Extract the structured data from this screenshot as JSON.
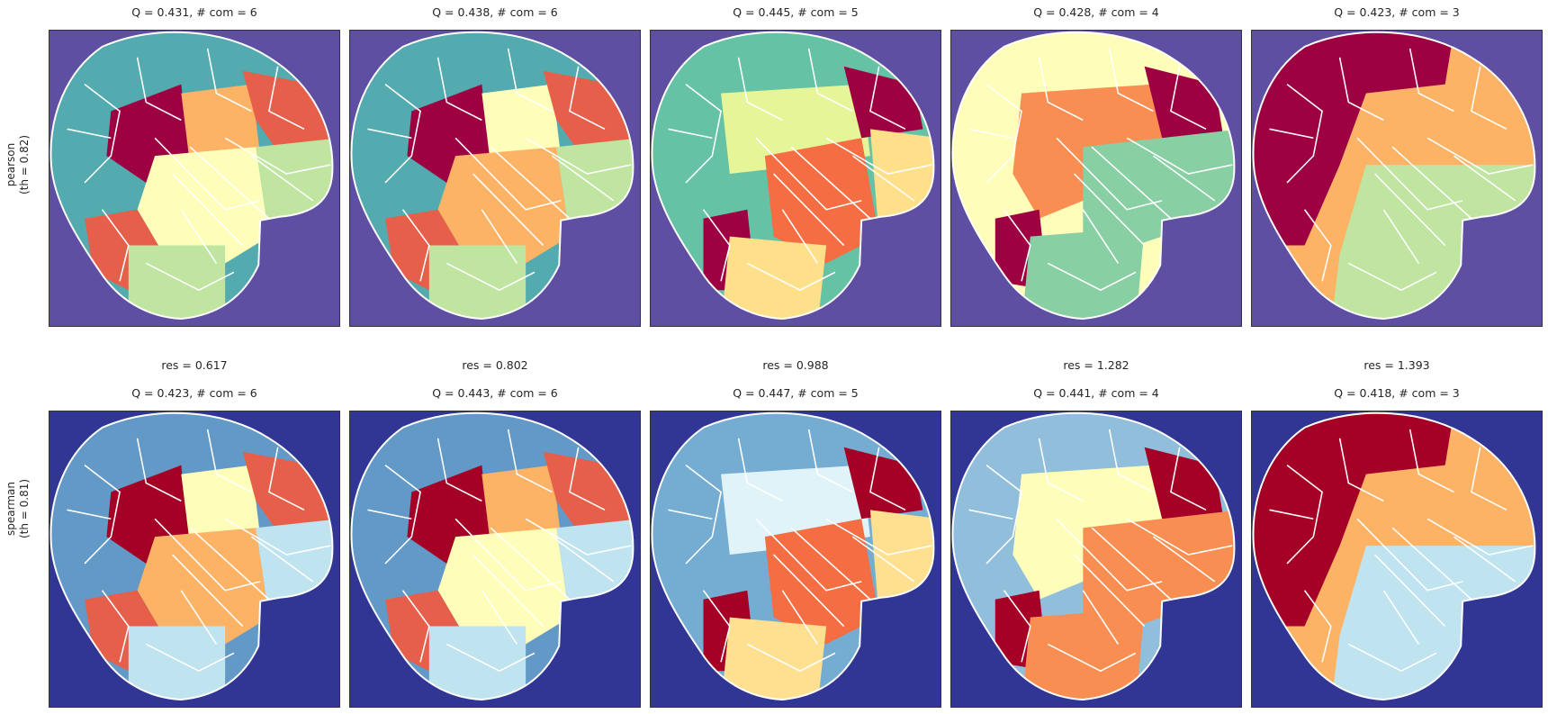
{
  "rows": [
    {
      "label_line1": "pearson",
      "label_line2": "(th = 0.82)",
      "background": "#5e4fa2",
      "panels": [
        {
          "title": "Q = 0.431,  # com = 6",
          "colors": [
            "#53aaaf",
            "#9e0142",
            "#fdb366",
            "#e65f4b",
            "#fefeba",
            "#bfe5a0"
          ]
        },
        {
          "title": "Q = 0.438,  # com = 6",
          "colors": [
            "#53aaaf",
            "#9e0142",
            "#fefeba",
            "#e65f4b",
            "#fdb366",
            "#bfe5a0"
          ]
        },
        {
          "title": "Q = 0.445,  # com = 5",
          "colors": [
            "#66c2a5",
            "#9e0142",
            "#e6f598",
            "#f46d43",
            "#fee08b"
          ]
        },
        {
          "title": "Q = 0.428,  # com = 4",
          "colors": [
            "#fefeba",
            "#9e0142",
            "#f88e52",
            "#88cfa4"
          ]
        },
        {
          "title": "Q = 0.423,  # com = 3",
          "colors": [
            "#9e0142",
            "#fdb366",
            "#bfe5a0"
          ]
        }
      ]
    },
    {
      "label_line1": "spearman",
      "label_line2": "(th = 0.81)",
      "background": "#313695",
      "panels": [
        {
          "title": "Q = 0.423,  # com = 6",
          "res": "res = 0.617",
          "colors": [
            "#6399c6",
            "#a50026",
            "#fefeba",
            "#e65f4b",
            "#fdb366",
            "#bfe3ef"
          ]
        },
        {
          "title": "Q = 0.443,  # com = 6",
          "res": "res = 0.802",
          "colors": [
            "#6399c6",
            "#a50026",
            "#fdb366",
            "#e65f4b",
            "#fefeba",
            "#bfe3ef"
          ]
        },
        {
          "title": "Q = 0.447,  # com = 5",
          "res": "res = 0.988",
          "colors": [
            "#74add1",
            "#a50026",
            "#e0f3f8",
            "#f46d43",
            "#fee090"
          ]
        },
        {
          "title": "Q = 0.441,  # com = 4",
          "res": "res = 1.282",
          "colors": [
            "#91bfdb",
            "#a50026",
            "#fefeba",
            "#f88e52"
          ]
        },
        {
          "title": "Q = 0.418,  # com = 3",
          "res": "res = 1.393",
          "colors": [
            "#a50026",
            "#fdb366",
            "#bfe3ef"
          ]
        }
      ]
    }
  ]
}
